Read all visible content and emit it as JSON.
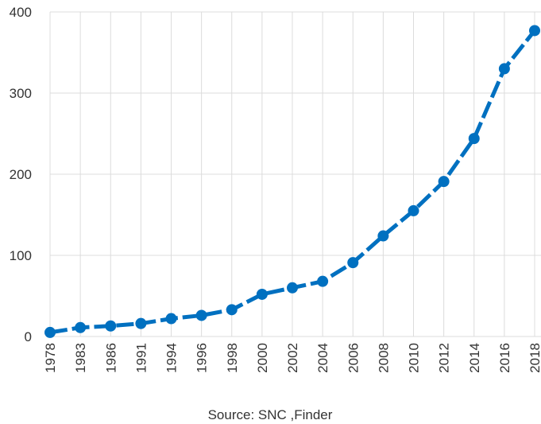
{
  "chart_data": {
    "type": "line",
    "categories": [
      "1978",
      "1983",
      "1986",
      "1991",
      "1994",
      "1996",
      "1998",
      "2000",
      "2002",
      "2004",
      "2006",
      "2008",
      "2010",
      "2012",
      "2014",
      "2016",
      "2018"
    ],
    "values": [
      5,
      11,
      13,
      16,
      22,
      26,
      33,
      52,
      60,
      68,
      91,
      124,
      155,
      191,
      244,
      330,
      377
    ],
    "color": "#0070c0",
    "ylim": [
      0,
      400
    ],
    "yticks": [
      0,
      100,
      200,
      300,
      400
    ],
    "grid": true,
    "source": "Source: SNC ,Finder"
  }
}
